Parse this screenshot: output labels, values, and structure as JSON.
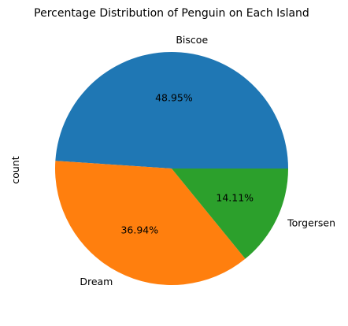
{
  "chart_data": {
    "type": "pie",
    "title": "Percentage Distribution of Penguin on Each Island",
    "ylabel": "count",
    "start_angle_deg": 0,
    "direction": "counterclockwise",
    "slices": [
      {
        "label": "Biscoe",
        "value": 48.95,
        "pct_label": "48.95%",
        "color": "#1f77b4"
      },
      {
        "label": "Dream",
        "value": 36.94,
        "pct_label": "36.94%",
        "color": "#ff7f0e"
      },
      {
        "label": "Torgersen",
        "value": 14.11,
        "pct_label": "14.11%",
        "color": "#2ca02c"
      }
    ]
  }
}
